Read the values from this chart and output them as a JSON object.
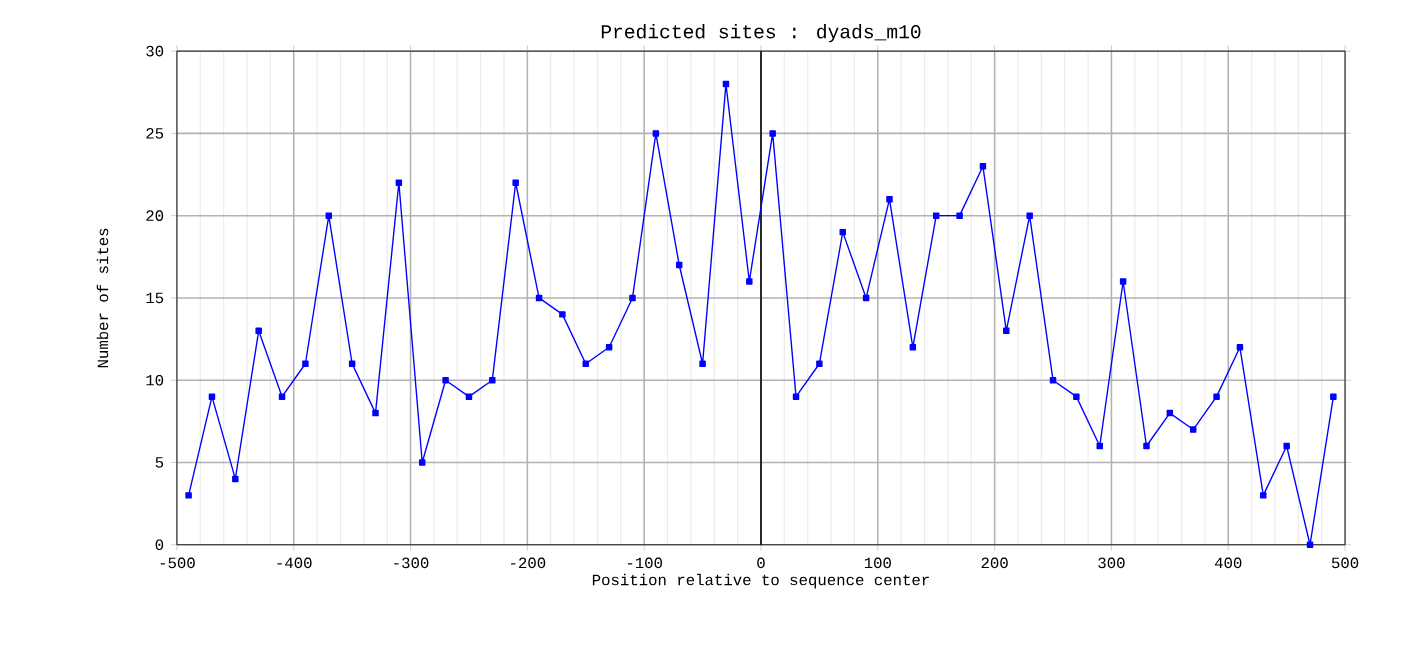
{
  "chart_data": {
    "type": "line",
    "title": "Predicted sites : dyads_m10",
    "xlabel": "Position relative to sequence center",
    "ylabel": "Number of sites",
    "x": [
      -490,
      -470,
      -450,
      -430,
      -410,
      -390,
      -370,
      -350,
      -330,
      -310,
      -290,
      -270,
      -250,
      -230,
      -210,
      -190,
      -170,
      -150,
      -130,
      -110,
      -90,
      -70,
      -50,
      -30,
      -10,
      10,
      30,
      50,
      70,
      90,
      110,
      130,
      150,
      170,
      190,
      210,
      230,
      250,
      270,
      290,
      310,
      330,
      350,
      370,
      390,
      410,
      430,
      450,
      470,
      490
    ],
    "series": [
      {
        "color": "#0000ff",
        "values": [
          3,
          9,
          4,
          13,
          9,
          11,
          20,
          11,
          8,
          22,
          5,
          10,
          9,
          10,
          22,
          15,
          14,
          11,
          12,
          15,
          25,
          17,
          11,
          28,
          16,
          25,
          9,
          11,
          19,
          15,
          21,
          12,
          20,
          20,
          23,
          13,
          20,
          10,
          9,
          6,
          16,
          6,
          8,
          7,
          9,
          12,
          3,
          6,
          0,
          9
        ]
      }
    ],
    "xlim": [
      -500,
      500
    ],
    "ylim": [
      0,
      30
    ],
    "xticks": [
      -500,
      -400,
      -300,
      -200,
      -100,
      0,
      100,
      200,
      300,
      400,
      500
    ],
    "yticks": [
      0,
      5,
      10,
      15,
      20,
      25,
      30
    ],
    "ref_lines": [
      {
        "axis": "x",
        "value": 0,
        "color": "#000000"
      }
    ],
    "grid": true,
    "marker": "square",
    "line_style": "solid"
  }
}
